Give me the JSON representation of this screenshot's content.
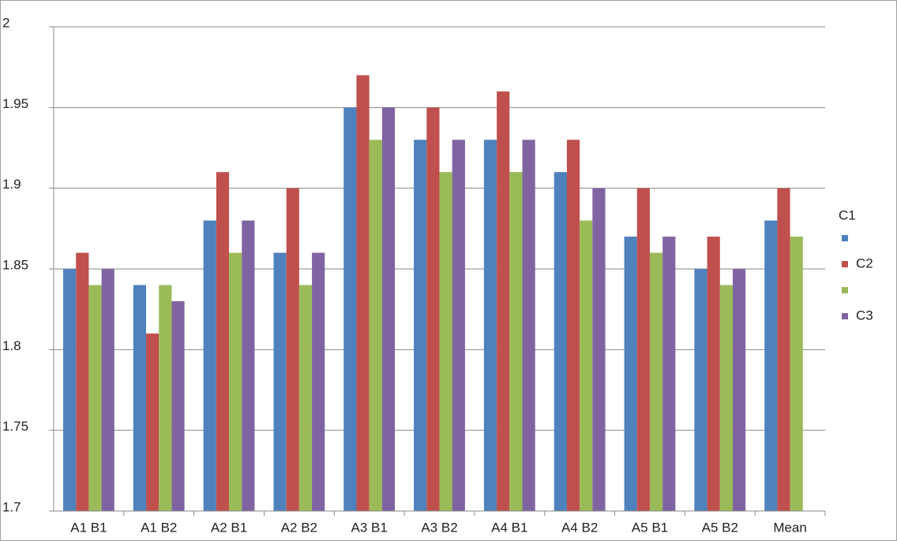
{
  "chart_data": {
    "type": "bar",
    "categories": [
      "A1 B1",
      "A1 B2",
      "A2 B1",
      "A2 B2",
      "A3 B1",
      "A3 B2",
      "A4 B1",
      "A4 B2",
      "A5 B1",
      "A5 B2",
      "Mean"
    ],
    "series": [
      {
        "name": "C1",
        "color": "#4f81bd",
        "values": [
          1.85,
          1.84,
          1.88,
          1.86,
          1.95,
          1.93,
          1.93,
          1.91,
          1.87,
          1.85,
          1.88
        ]
      },
      {
        "name": "C2",
        "color": "#c0504d",
        "values": [
          1.86,
          1.81,
          1.91,
          1.9,
          1.97,
          1.95,
          1.96,
          1.93,
          1.9,
          1.87,
          1.9
        ]
      },
      {
        "name": null,
        "color": "#9bbb59",
        "values": [
          1.84,
          1.84,
          1.86,
          1.84,
          1.93,
          1.91,
          1.91,
          1.88,
          1.86,
          1.84,
          1.87
        ]
      },
      {
        "name": "C3",
        "color": "#8064a2",
        "values": [
          1.85,
          1.83,
          1.88,
          1.86,
          1.95,
          1.93,
          1.93,
          1.9,
          1.87,
          1.85,
          null
        ]
      }
    ],
    "ylim": [
      1.7,
      2
    ],
    "yticks": [
      1.7,
      1.75,
      1.8,
      1.85,
      1.9,
      1.95,
      2
    ],
    "grid": true
  }
}
